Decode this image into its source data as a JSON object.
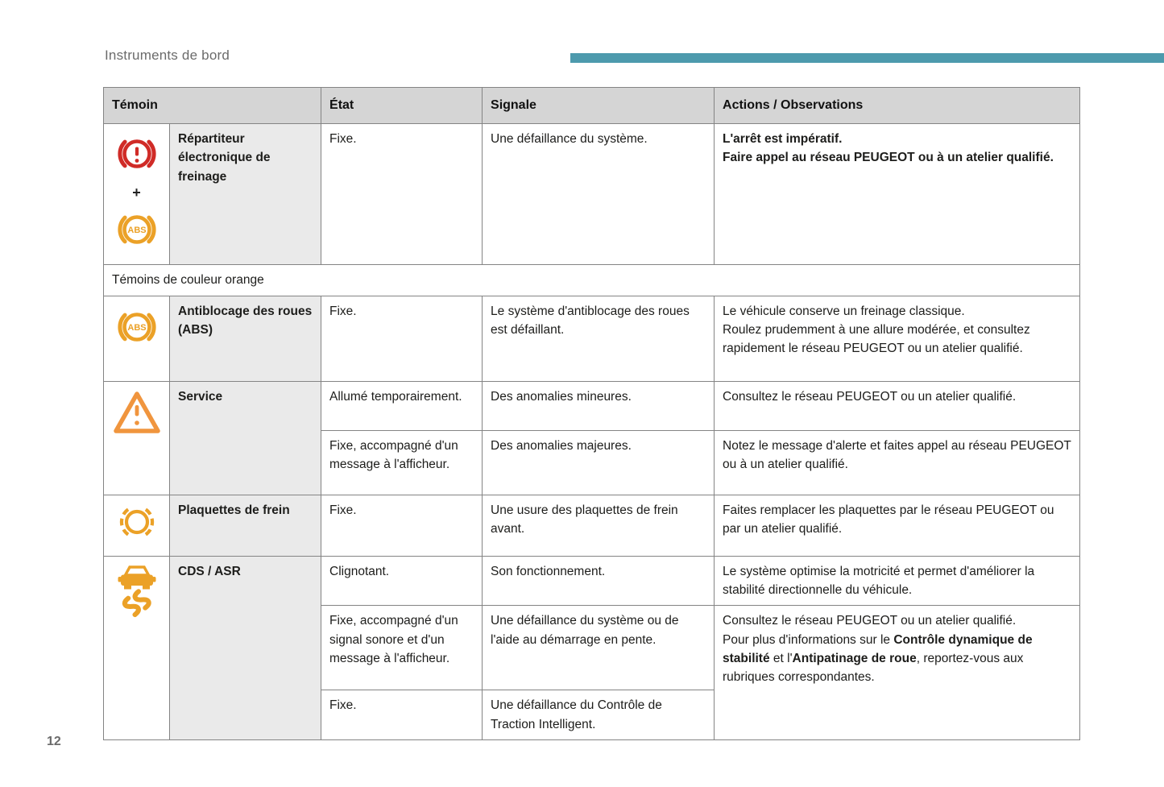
{
  "page": {
    "title": "Instruments de bord",
    "page_number": "12"
  },
  "colors": {
    "accent_bar": "#4d9aad",
    "red_light": "#d02b27",
    "orange_light": "#eba127",
    "service_orange": "#f0953e",
    "border_gray": "#848484",
    "header_bg": "#d5d5d5",
    "name_bg": "#eaeaea"
  },
  "icons": {
    "abs_label": "ABS",
    "plus_sign": "+"
  },
  "table": {
    "headers": [
      "Témoin",
      "État",
      "Signale",
      "Actions / Observations"
    ],
    "rows": [
      {
        "type": "light",
        "icons": [
          "brake-warning-icon",
          "plus-sign",
          "abs-icon"
        ],
        "name": "Répartiteur électronique de freinage",
        "subs": [
          {
            "etat": "Fixe.",
            "signale": "Une défaillance du système.",
            "actions": {
              "bold": true,
              "lines": [
                "L'arrêt est impératif.",
                "Faire appel au réseau PEUGEOT ou à un atelier qualifié."
              ]
            }
          }
        ]
      },
      {
        "type": "divider",
        "label": "Témoins de couleur orange"
      },
      {
        "type": "light",
        "icons": [
          "abs-icon"
        ],
        "name": "Antiblocage des roues (ABS)",
        "subs": [
          {
            "etat": "Fixe.",
            "signale": "Le système d'antiblocage des roues est défaillant.",
            "actions": {
              "lines": [
                "Le véhicule conserve un freinage classique.",
                "Roulez prudemment à une allure modérée, et consultez rapidement le réseau PEUGEOT ou un atelier qualifié."
              ]
            }
          }
        ]
      },
      {
        "type": "light",
        "icons": [
          "service-warning-icon"
        ],
        "name": "Service",
        "subs": [
          {
            "etat": "Allumé temporairement.",
            "signale": "Des anomalies mineures.",
            "actions": {
              "lines": [
                "Consultez le réseau PEUGEOT ou un atelier qualifié."
              ]
            }
          },
          {
            "etat": "Fixe, accompagné d'un message à l'afficheur.",
            "signale": "Des anomalies majeures.",
            "actions": {
              "lines": [
                "Notez le message d'alerte et faites appel au réseau PEUGEOT ou à un atelier qualifié."
              ]
            }
          }
        ]
      },
      {
        "type": "light",
        "icons": [
          "brake-pads-icon"
        ],
        "name": "Plaquettes de frein",
        "subs": [
          {
            "etat": "Fixe.",
            "signale": "Une usure des plaquettes de frein avant.",
            "actions": {
              "lines": [
                "Faites remplacer les plaquettes par le réseau PEUGEOT ou par un atelier qualifié."
              ]
            }
          }
        ]
      },
      {
        "type": "light",
        "icons": [
          "traction-control-icon"
        ],
        "name": "CDS / ASR",
        "subs": [
          {
            "etat": "Clignotant.",
            "signale": "Son fonctionnement.",
            "actions": {
              "lines": [
                "Le système optimise la motricité et permet d'améliorer la stabilité directionnelle du véhicule."
              ]
            }
          },
          {
            "etat": "Fixe, accompagné d'un signal sonore et d'un message à l'afficheur.",
            "signale": "Une défaillance du système ou de l'aide au démarrage en pente.",
            "actions": {
              "lines": [
                "Consultez le réseau PEUGEOT ou un atelier qualifié.",
                [
                  {
                    "text": "Pour plus d'informations sur le ",
                    "bold": false
                  },
                  {
                    "text": "Contrôle dynamique de stabilité",
                    "bold": true
                  },
                  {
                    "text": " et l'",
                    "bold": false
                  },
                  {
                    "text": "Antipatinage de roue",
                    "bold": true
                  },
                  {
                    "text": ", reportez-vous aux rubriques correspondantes.",
                    "bold": false
                  }
                ]
              ]
            }
          },
          {
            "etat": "Fixe.",
            "signale": "Une défaillance du Contrôle de Traction Intelligent."
          }
        ]
      }
    ]
  }
}
